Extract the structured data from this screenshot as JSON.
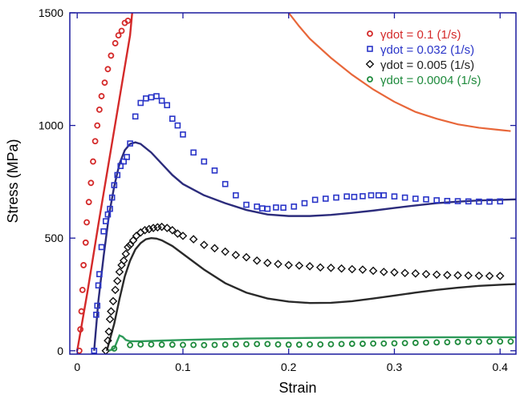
{
  "chart_data": {
    "type": "scatter",
    "xlabel": "Strain",
    "ylabel": "Stress (MPa)",
    "xlim": [
      -0.007,
      0.415
    ],
    "ylim": [
      -15,
      1500
    ],
    "xticks": [
      0,
      0.1,
      0.2,
      0.3,
      0.4
    ],
    "xtick_labels": [
      "0",
      "0.1",
      "0.2",
      "0.3",
      "0.4"
    ],
    "yticks": [
      0,
      500,
      1000,
      1500
    ],
    "ytick_labels": [
      "0",
      "500",
      "1000",
      "1500"
    ],
    "grid": false,
    "legend_position": "top-right",
    "axis_color": "#1a1a9e",
    "series": [
      {
        "name": "γdot = 0.1 (1/s)",
        "color": "#d42a2a",
        "marker": "circle",
        "points": [
          [
            0.002,
            0
          ],
          [
            0.003,
            95
          ],
          [
            0.004,
            175
          ],
          [
            0.005,
            270
          ],
          [
            0.006,
            380
          ],
          [
            0.008,
            480
          ],
          [
            0.009,
            570
          ],
          [
            0.011,
            660
          ],
          [
            0.013,
            745
          ],
          [
            0.015,
            840
          ],
          [
            0.017,
            930
          ],
          [
            0.019,
            1000
          ],
          [
            0.021,
            1070
          ],
          [
            0.023,
            1130
          ],
          [
            0.026,
            1190
          ],
          [
            0.029,
            1250
          ],
          [
            0.032,
            1310
          ],
          [
            0.036,
            1365
          ],
          [
            0.039,
            1400
          ],
          [
            0.042,
            1420
          ],
          [
            0.045,
            1455
          ],
          [
            0.048,
            1465
          ]
        ],
        "model_curve": [
          [
            0.0,
            0
          ],
          [
            0.01,
            270
          ],
          [
            0.02,
            560
          ],
          [
            0.03,
            840
          ],
          [
            0.04,
            1120
          ],
          [
            0.05,
            1400
          ],
          [
            0.052,
            1500
          ]
        ]
      },
      {
        "name": "γdot = 0.032 (1/s)",
        "color": "#2a35c8",
        "curve_color": "#2c2c7c",
        "marker": "square",
        "points": [
          [
            0.016,
            0
          ],
          [
            0.018,
            160
          ],
          [
            0.019,
            200
          ],
          [
            0.02,
            290
          ],
          [
            0.021,
            340
          ],
          [
            0.023,
            460
          ],
          [
            0.025,
            530
          ],
          [
            0.027,
            575
          ],
          [
            0.029,
            605
          ],
          [
            0.031,
            630
          ],
          [
            0.033,
            680
          ],
          [
            0.035,
            735
          ],
          [
            0.038,
            780
          ],
          [
            0.041,
            820
          ],
          [
            0.044,
            840
          ],
          [
            0.047,
            860
          ],
          [
            0.05,
            920
          ],
          [
            0.055,
            1040
          ],
          [
            0.06,
            1100
          ],
          [
            0.065,
            1120
          ],
          [
            0.07,
            1125
          ],
          [
            0.075,
            1130
          ],
          [
            0.08,
            1110
          ],
          [
            0.085,
            1090
          ],
          [
            0.09,
            1030
          ],
          [
            0.095,
            1000
          ],
          [
            0.1,
            960
          ],
          [
            0.11,
            880
          ],
          [
            0.12,
            840
          ],
          [
            0.13,
            800
          ],
          [
            0.14,
            740
          ],
          [
            0.15,
            690
          ],
          [
            0.16,
            648
          ],
          [
            0.17,
            640
          ],
          [
            0.175,
            632
          ],
          [
            0.18,
            630
          ],
          [
            0.188,
            636
          ],
          [
            0.195,
            635
          ],
          [
            0.205,
            640
          ],
          [
            0.215,
            655
          ],
          [
            0.225,
            670
          ],
          [
            0.235,
            675
          ],
          [
            0.245,
            680
          ],
          [
            0.255,
            685
          ],
          [
            0.262,
            683
          ],
          [
            0.27,
            686
          ],
          [
            0.278,
            690
          ],
          [
            0.285,
            690
          ],
          [
            0.29,
            690
          ],
          [
            0.3,
            685
          ],
          [
            0.31,
            680
          ],
          [
            0.32,
            675
          ],
          [
            0.33,
            672
          ],
          [
            0.34,
            668
          ],
          [
            0.35,
            665
          ],
          [
            0.36,
            664
          ],
          [
            0.37,
            663
          ],
          [
            0.38,
            662
          ],
          [
            0.39,
            662
          ],
          [
            0.4,
            663
          ]
        ],
        "model_curve": [
          [
            0.016,
            0
          ],
          [
            0.02,
            220
          ],
          [
            0.025,
            420
          ],
          [
            0.03,
            600
          ],
          [
            0.035,
            730
          ],
          [
            0.04,
            830
          ],
          [
            0.045,
            890
          ],
          [
            0.05,
            918
          ],
          [
            0.055,
            925
          ],
          [
            0.06,
            918
          ],
          [
            0.07,
            880
          ],
          [
            0.08,
            830
          ],
          [
            0.09,
            780
          ],
          [
            0.1,
            740
          ],
          [
            0.12,
            690
          ],
          [
            0.14,
            655
          ],
          [
            0.16,
            625
          ],
          [
            0.18,
            605
          ],
          [
            0.2,
            598
          ],
          [
            0.22,
            598
          ],
          [
            0.24,
            603
          ],
          [
            0.26,
            612
          ],
          [
            0.28,
            622
          ],
          [
            0.3,
            634
          ],
          [
            0.32,
            645
          ],
          [
            0.34,
            655
          ],
          [
            0.36,
            662
          ],
          [
            0.38,
            667
          ],
          [
            0.4,
            670
          ],
          [
            0.415,
            672
          ]
        ]
      },
      {
        "name": "γdot = 0.005 (1/s)",
        "color": "#111111",
        "curve_color": "#2a2a2a",
        "marker": "diamond",
        "points": [
          [
            0.027,
            0
          ],
          [
            0.029,
            45
          ],
          [
            0.03,
            85
          ],
          [
            0.031,
            140
          ],
          [
            0.032,
            175
          ],
          [
            0.034,
            220
          ],
          [
            0.036,
            270
          ],
          [
            0.038,
            310
          ],
          [
            0.04,
            350
          ],
          [
            0.042,
            380
          ],
          [
            0.044,
            400
          ],
          [
            0.046,
            430
          ],
          [
            0.048,
            460
          ],
          [
            0.05,
            470
          ],
          [
            0.053,
            490
          ],
          [
            0.056,
            510
          ],
          [
            0.06,
            525
          ],
          [
            0.064,
            535
          ],
          [
            0.068,
            540
          ],
          [
            0.072,
            545
          ],
          [
            0.076,
            548
          ],
          [
            0.08,
            550
          ],
          [
            0.085,
            545
          ],
          [
            0.09,
            535
          ],
          [
            0.095,
            520
          ],
          [
            0.1,
            510
          ],
          [
            0.11,
            495
          ],
          [
            0.12,
            470
          ],
          [
            0.13,
            455
          ],
          [
            0.14,
            440
          ],
          [
            0.15,
            425
          ],
          [
            0.16,
            415
          ],
          [
            0.17,
            400
          ],
          [
            0.18,
            390
          ],
          [
            0.19,
            385
          ],
          [
            0.2,
            380
          ],
          [
            0.21,
            378
          ],
          [
            0.22,
            375
          ],
          [
            0.23,
            370
          ],
          [
            0.24,
            368
          ],
          [
            0.25,
            365
          ],
          [
            0.26,
            362
          ],
          [
            0.27,
            360
          ],
          [
            0.28,
            355
          ],
          [
            0.29,
            350
          ],
          [
            0.3,
            348
          ],
          [
            0.31,
            345
          ],
          [
            0.32,
            343
          ],
          [
            0.33,
            340
          ],
          [
            0.34,
            338
          ],
          [
            0.35,
            336
          ],
          [
            0.36,
            335
          ],
          [
            0.37,
            334
          ],
          [
            0.38,
            333
          ],
          [
            0.39,
            332
          ],
          [
            0.4,
            332
          ]
        ],
        "model_curve": [
          [
            0.028,
            0
          ],
          [
            0.035,
            120
          ],
          [
            0.04,
            230
          ],
          [
            0.045,
            330
          ],
          [
            0.05,
            400
          ],
          [
            0.055,
            450
          ],
          [
            0.06,
            478
          ],
          [
            0.065,
            495
          ],
          [
            0.07,
            500
          ],
          [
            0.075,
            498
          ],
          [
            0.08,
            490
          ],
          [
            0.09,
            465
          ],
          [
            0.1,
            430
          ],
          [
            0.12,
            360
          ],
          [
            0.14,
            300
          ],
          [
            0.16,
            258
          ],
          [
            0.18,
            232
          ],
          [
            0.2,
            218
          ],
          [
            0.22,
            212
          ],
          [
            0.24,
            213
          ],
          [
            0.26,
            220
          ],
          [
            0.28,
            232
          ],
          [
            0.3,
            245
          ],
          [
            0.32,
            258
          ],
          [
            0.34,
            270
          ],
          [
            0.36,
            280
          ],
          [
            0.38,
            288
          ],
          [
            0.4,
            293
          ],
          [
            0.415,
            296
          ]
        ]
      },
      {
        "name": "γdot = 0.0004 (1/s)",
        "color": "#1e8a3c",
        "curve_color": "#2e9a5a",
        "marker": "circle",
        "points": [
          [
            0.035,
            10
          ],
          [
            0.05,
            25
          ],
          [
            0.06,
            28
          ],
          [
            0.07,
            28
          ],
          [
            0.08,
            27
          ],
          [
            0.09,
            27
          ],
          [
            0.1,
            26
          ],
          [
            0.11,
            26
          ],
          [
            0.12,
            25
          ],
          [
            0.13,
            26
          ],
          [
            0.14,
            27
          ],
          [
            0.15,
            28
          ],
          [
            0.16,
            29
          ],
          [
            0.17,
            30
          ],
          [
            0.18,
            30
          ],
          [
            0.19,
            28
          ],
          [
            0.2,
            27
          ],
          [
            0.21,
            27
          ],
          [
            0.22,
            28
          ],
          [
            0.23,
            28
          ],
          [
            0.24,
            29
          ],
          [
            0.25,
            30
          ],
          [
            0.26,
            31
          ],
          [
            0.27,
            31
          ],
          [
            0.28,
            32
          ],
          [
            0.29,
            32
          ],
          [
            0.3,
            33
          ],
          [
            0.31,
            34
          ],
          [
            0.32,
            35
          ],
          [
            0.33,
            36
          ],
          [
            0.34,
            37
          ],
          [
            0.35,
            38
          ],
          [
            0.36,
            39
          ],
          [
            0.37,
            40
          ],
          [
            0.38,
            40
          ],
          [
            0.39,
            41
          ],
          [
            0.4,
            41
          ],
          [
            0.41,
            41
          ]
        ],
        "model_curve": [
          [
            0.03,
            0
          ],
          [
            0.035,
            10
          ],
          [
            0.038,
            45
          ],
          [
            0.04,
            68
          ],
          [
            0.043,
            62
          ],
          [
            0.046,
            48
          ],
          [
            0.05,
            42
          ],
          [
            0.06,
            42
          ],
          [
            0.08,
            45
          ],
          [
            0.1,
            48
          ],
          [
            0.12,
            50
          ],
          [
            0.14,
            52
          ],
          [
            0.16,
            54
          ],
          [
            0.2,
            56
          ],
          [
            0.25,
            58
          ],
          [
            0.3,
            59
          ],
          [
            0.35,
            60
          ],
          [
            0.4,
            60
          ],
          [
            0.415,
            60
          ]
        ]
      }
    ],
    "extra_curve": {
      "color": "#e8673a",
      "points": [
        [
          0.2,
          1500
        ],
        [
          0.21,
          1440
        ],
        [
          0.22,
          1385
        ],
        [
          0.24,
          1300
        ],
        [
          0.26,
          1225
        ],
        [
          0.28,
          1160
        ],
        [
          0.3,
          1105
        ],
        [
          0.32,
          1060
        ],
        [
          0.34,
          1030
        ],
        [
          0.36,
          1005
        ],
        [
          0.38,
          990
        ],
        [
          0.4,
          980
        ],
        [
          0.41,
          975
        ]
      ]
    }
  }
}
